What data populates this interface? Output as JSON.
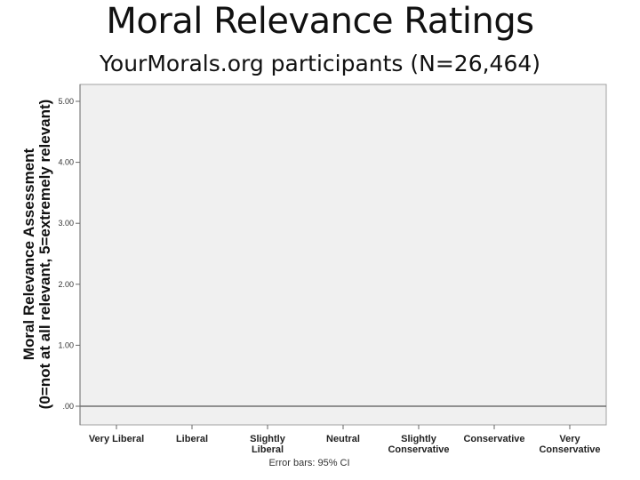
{
  "header": {
    "title": "Moral Relevance Ratings",
    "subtitle": "YourMorals.org participants (N=26,464)"
  },
  "chart_data": {
    "type": "bar",
    "ylabel_line1": "Moral Relevance Assessment",
    "ylabel_line2": "(0=not at all relevant, 5=extremely relevant)",
    "xlabel": "",
    "ylim": [
      0,
      5
    ],
    "yticks": [
      "5.00",
      "4.00",
      "3.00",
      "2.00",
      "1.00",
      ".00"
    ],
    "categories": [
      [
        "Very Liberal"
      ],
      [
        "Liberal"
      ],
      [
        "Slightly",
        "Liberal"
      ],
      [
        "Neutral"
      ],
      [
        "Slightly",
        "Conservative"
      ],
      [
        "Conservative"
      ],
      [
        "Very",
        "Conservative"
      ]
    ],
    "series": [],
    "grid": false,
    "footnote": "Error bars: 95% CI",
    "colors": {
      "plot_bg": "#f0f0f0",
      "frame": "#a0a0a0",
      "baseline": "#707070"
    }
  }
}
